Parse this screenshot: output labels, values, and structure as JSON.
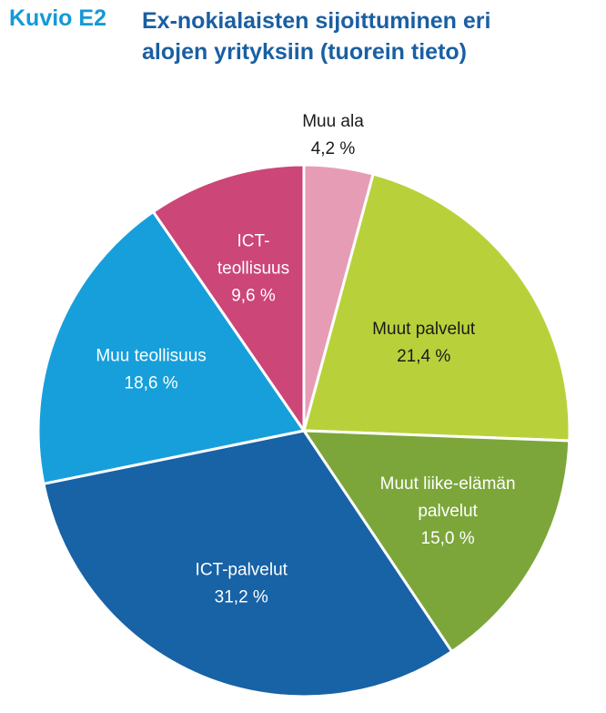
{
  "header": {
    "tag": "Kuvio E2",
    "title_line1": "Ex-nokialaisten sijoittuminen eri",
    "title_line2": "alojen yrityksiin (tuorein tieto)"
  },
  "chart_data": {
    "type": "pie",
    "title": "Ex-nokialaisten sijoittuminen eri alojen yrityksiin (tuorein tieto)",
    "start": "12 o'clock",
    "direction": "clockwise",
    "slices": [
      {
        "label": [
          "Muu ala"
        ],
        "value": 4.2,
        "value_label": "4,2 %",
        "color": "#e79cb6",
        "text_color": "#1a1a1a"
      },
      {
        "label": [
          "Muut palvelut"
        ],
        "value": 21.4,
        "value_label": "21,4 %",
        "color": "#b8d13b",
        "text_color": "#1a1a1a"
      },
      {
        "label": [
          "Muut liike-elämän",
          "palvelut"
        ],
        "value": 15.0,
        "value_label": "15,0 %",
        "color": "#7ca63a",
        "text_color": "#ffffff"
      },
      {
        "label": [
          "ICT-palvelut"
        ],
        "value": 31.2,
        "value_label": "31,2 %",
        "color": "#1862a6",
        "text_color": "#ffffff"
      },
      {
        "label": [
          "Muu teollisuus"
        ],
        "value": 18.6,
        "value_label": "18,6 %",
        "color": "#179fdb",
        "text_color": "#ffffff"
      },
      {
        "label": [
          "ICT-",
          "teollisuus"
        ],
        "value": 9.6,
        "value_label": "9,6 %",
        "color": "#cc4677",
        "text_color": "#ffffff"
      }
    ]
  }
}
